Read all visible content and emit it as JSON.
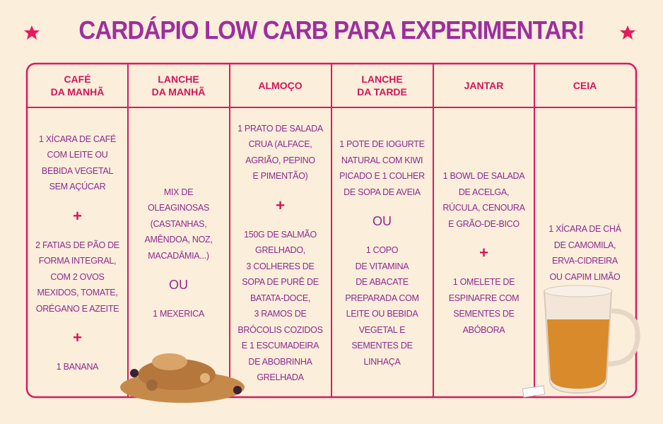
{
  "header": {
    "title": "CARDÁPIO LOW CARB PARA EXPERIMENTAR!"
  },
  "table": {
    "columns": [
      {
        "header": [
          "CAFÉ",
          "DA MANHÃ"
        ],
        "blocks": [
          [
            "1 XÍCARA DE CAFÉ",
            "COM LEITE OU",
            "BEBIDA VEGETAL",
            "SEM AÇÚCAR"
          ],
          [
            "+"
          ],
          [
            "2 FATIAS DE PÃO DE",
            "FORMA INTEGRAL,",
            "COM 2 OVOS",
            "MEXIDOS, TOMATE,",
            "ORÉGANO E AZEITE"
          ],
          [
            "+"
          ],
          [
            "1 BANANA"
          ]
        ]
      },
      {
        "header": [
          "LANCHE",
          "DA MANHÃ"
        ],
        "blocks": [
          [
            "MIX DE",
            "OLEAGINOSAS",
            "(CASTANHAS,",
            "AMÊNDOA, NOZ,",
            "MACADÂMIA...)"
          ],
          [
            "OU"
          ],
          [
            "1 MEXERICA"
          ]
        ]
      },
      {
        "header": [
          "ALMOÇO"
        ],
        "blocks": [
          [
            "1 PRATO DE SALADA",
            "CRUA (ALFACE,",
            "AGRIÃO, PEPINO",
            "E PIMENTÃO)"
          ],
          [
            "+"
          ],
          [
            "150G DE SALMÃO",
            "GRELHADO,",
            "3 COLHERES DE",
            "SOPA DE PURÊ DE",
            "BATATA-DOCE,",
            "3 RAMOS DE",
            "BRÓCOLIS COZIDOS",
            "E 1 ESCUMADEIRA",
            "DE ABOBRINHA",
            "GRELHADA"
          ]
        ]
      },
      {
        "header": [
          "LANCHE",
          "DA TARDE"
        ],
        "blocks": [
          [
            "1 POTE DE IOGURTE",
            "NATURAL COM KIWI",
            "PICADO E 1 COLHER",
            "DE SOPA DE AVEIA"
          ],
          [
            "OU"
          ],
          [
            "1 COPO",
            "DE VITAMINA",
            "DE ABACATE",
            "PREPARADA COM",
            "LEITE OU BEBIDA",
            "VEGETAL E",
            "SEMENTES DE",
            "LINHAÇA"
          ]
        ]
      },
      {
        "header": [
          "JANTAR"
        ],
        "blocks": [
          [
            "1 BOWL DE SALADA",
            "DE ACELGA,",
            "RÚCULA, CENOURA",
            "E GRÃO-DE-BICO"
          ],
          [
            "+"
          ],
          [
            "1 OMELETE DE",
            "ESPINAFRE COM",
            "SEMENTES DE",
            "ABÓBORA"
          ]
        ]
      },
      {
        "header": [
          "CEIA"
        ],
        "blocks": [
          [
            "1 XÍCARA DE CHÁ",
            "DE CAMOMILA,",
            "ERVA-CIDREIRA",
            "OU CAPIM LIMÃO"
          ]
        ]
      }
    ]
  }
}
